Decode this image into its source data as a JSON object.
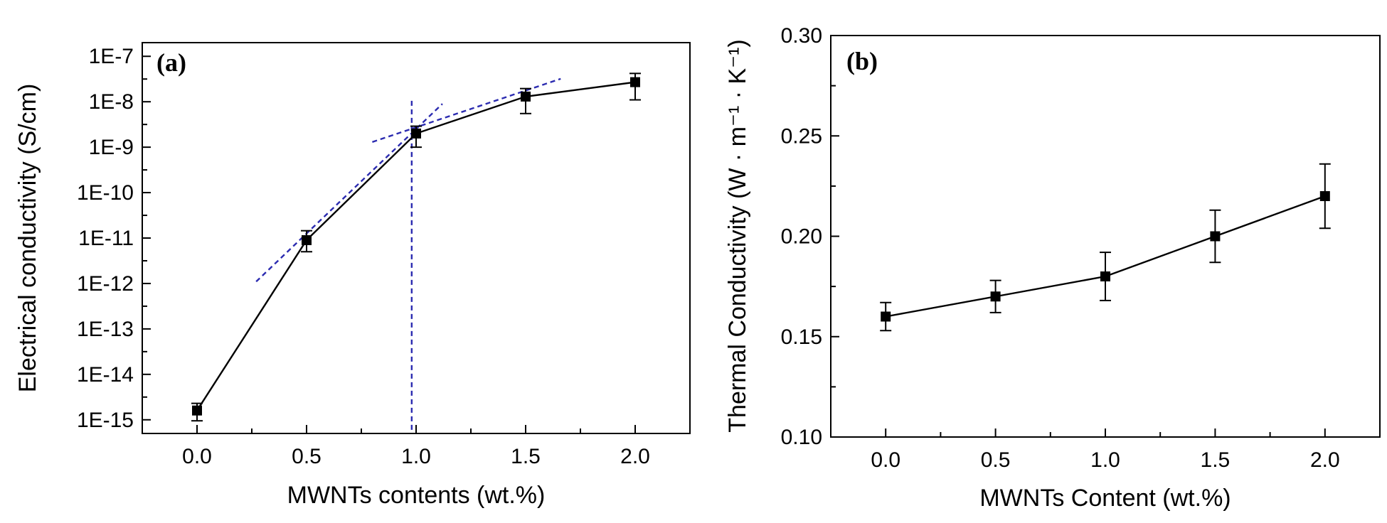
{
  "chart_data": [
    {
      "panel_label": "(a)",
      "type": "line",
      "yscale": "log",
      "xlabel": "MWNTs contents (wt.%)",
      "ylabel": "Electrical conductivity (S/cm)",
      "xlim": [
        -0.25,
        2.25
      ],
      "ylim": [
        5e-16,
        2e-07
      ],
      "x": [
        0.0,
        0.5,
        1.0,
        1.5,
        2.0
      ],
      "xticks": [
        0.0,
        0.5,
        1.0,
        1.5,
        2.0
      ],
      "xtick_labels": [
        "0.0",
        "0.5",
        "1.0",
        "1.5",
        "2.0"
      ],
      "yticks": [
        1e-15,
        1e-14,
        1e-13,
        1e-12,
        1e-11,
        1e-10,
        1e-09,
        1e-08,
        1e-07
      ],
      "ytick_labels": [
        "1E-15",
        "1E-14",
        "1E-13",
        "1E-12",
        "1E-11",
        "1E-10",
        "1E-9",
        "1E-8",
        "1E-7"
      ],
      "series": [
        {
          "name": "Electrical conductivity",
          "values": [
            1.6e-15,
            9e-12,
            2e-09,
            1.3e-08,
            2.7e-08
          ],
          "err_low": [
            9.5e-16,
            5e-12,
            1e-09,
            5.5e-09,
            1.1e-08
          ],
          "err_high": [
            2.3e-15,
            1.45e-11,
            2.9e-09,
            1.95e-08,
            4.2e-08
          ]
        }
      ],
      "guide_lines": [
        {
          "name": "percolation-fit-low",
          "x": [
            0.27,
            1.12
          ],
          "y": [
            1.1e-12,
            9e-09
          ]
        },
        {
          "name": "percolation-fit-high",
          "x": [
            0.8,
            1.66
          ],
          "y": [
            1.3e-09,
            3.2e-08
          ]
        },
        {
          "name": "percolation-threshold",
          "x": [
            0.98,
            0.98
          ],
          "y": [
            6e-16,
            1.1e-08
          ]
        }
      ],
      "guide_color": "#2b2bb0"
    },
    {
      "panel_label": "(b)",
      "type": "line",
      "yscale": "linear",
      "xlabel": "MWNTs Content (wt.%)",
      "ylabel": "Thermal Conductivity (W · m⁻¹ · K⁻¹)",
      "xlim": [
        -0.25,
        2.25
      ],
      "ylim": [
        0.1,
        0.3
      ],
      "x": [
        0.0,
        0.5,
        1.0,
        1.5,
        2.0
      ],
      "xticks": [
        0.0,
        0.5,
        1.0,
        1.5,
        2.0
      ],
      "xtick_labels": [
        "0.0",
        "0.5",
        "1.0",
        "1.5",
        "2.0"
      ],
      "yticks": [
        0.1,
        0.15,
        0.2,
        0.25,
        0.3
      ],
      "ytick_labels": [
        "0.10",
        "0.15",
        "0.20",
        "0.25",
        "0.30"
      ],
      "series": [
        {
          "name": "Thermal conductivity",
          "values": [
            0.16,
            0.17,
            0.18,
            0.2,
            0.22
          ],
          "err_low": [
            0.153,
            0.162,
            0.168,
            0.187,
            0.204
          ],
          "err_high": [
            0.167,
            0.178,
            0.192,
            0.213,
            0.236
          ]
        }
      ]
    }
  ]
}
